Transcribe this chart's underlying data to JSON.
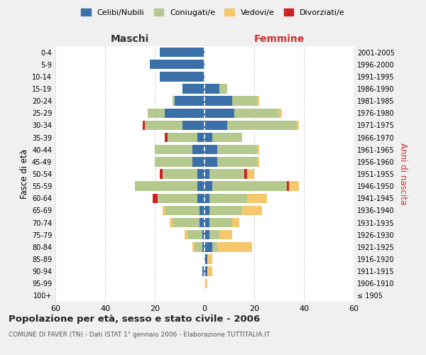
{
  "age_groups": [
    "100+",
    "95-99",
    "90-94",
    "85-89",
    "80-84",
    "75-79",
    "70-74",
    "65-69",
    "60-64",
    "55-59",
    "50-54",
    "45-49",
    "40-44",
    "35-39",
    "30-34",
    "25-29",
    "20-24",
    "15-19",
    "10-14",
    "5-9",
    "0-4"
  ],
  "birth_years": [
    "≤ 1905",
    "1906-1910",
    "1911-1915",
    "1916-1920",
    "1921-1925",
    "1926-1930",
    "1931-1935",
    "1936-1940",
    "1941-1945",
    "1946-1950",
    "1951-1955",
    "1956-1960",
    "1961-1965",
    "1966-1970",
    "1971-1975",
    "1976-1980",
    "1981-1985",
    "1986-1990",
    "1991-1995",
    "1996-2000",
    "2001-2005"
  ],
  "colors": {
    "celibi": "#3a6fa8",
    "coniugati": "#b5c98e",
    "vedovi": "#f5c86e",
    "divorziati": "#cc2222"
  },
  "maschi": {
    "celibi": [
      0,
      0,
      1,
      0,
      1,
      1,
      2,
      2,
      3,
      3,
      3,
      5,
      5,
      3,
      9,
      16,
      12,
      9,
      18,
      22,
      18
    ],
    "coniugati": [
      0,
      0,
      0,
      0,
      3,
      6,
      11,
      14,
      16,
      25,
      14,
      15,
      15,
      12,
      15,
      7,
      1,
      0,
      0,
      0,
      0
    ],
    "vedovi": [
      0,
      0,
      0,
      0,
      1,
      1,
      1,
      1,
      0,
      0,
      0,
      0,
      0,
      0,
      0,
      0,
      0,
      0,
      0,
      0,
      0
    ],
    "divorziati": [
      0,
      0,
      0,
      0,
      0,
      0,
      0,
      0,
      2,
      0,
      1,
      0,
      0,
      1,
      1,
      0,
      0,
      0,
      0,
      0,
      0
    ]
  },
  "femmine": {
    "celibi": [
      0,
      0,
      1,
      1,
      3,
      2,
      2,
      2,
      2,
      3,
      2,
      5,
      5,
      3,
      9,
      12,
      11,
      6,
      0,
      0,
      0
    ],
    "coniugati": [
      0,
      0,
      0,
      0,
      2,
      4,
      9,
      13,
      15,
      30,
      14,
      16,
      16,
      12,
      28,
      18,
      10,
      3,
      0,
      0,
      0
    ],
    "vedovi": [
      0,
      1,
      2,
      2,
      14,
      5,
      3,
      8,
      8,
      4,
      3,
      1,
      1,
      0,
      1,
      1,
      1,
      0,
      0,
      0,
      0
    ],
    "divorziati": [
      0,
      0,
      0,
      0,
      0,
      0,
      0,
      0,
      0,
      1,
      1,
      0,
      0,
      0,
      0,
      0,
      0,
      0,
      0,
      0,
      0
    ]
  },
  "xlim": 60,
  "title": "Popolazione per età, sesso e stato civile - 2006",
  "subtitle": "COMUNE DI FAVER (TN) - Dati ISTAT 1° gennaio 2006 - Elaborazione TUTTITALIA.IT",
  "ylabel_left": "Fasce di età",
  "ylabel_right": "Anni di nascita",
  "xlabel_maschi": "Maschi",
  "xlabel_femmine": "Femmine",
  "legend_labels": [
    "Celibi/Nubili",
    "Coniugati/e",
    "Vedovi/e",
    "Divorziati/e"
  ],
  "background_color": "#f0f0f0",
  "plot_bg": "#ffffff"
}
